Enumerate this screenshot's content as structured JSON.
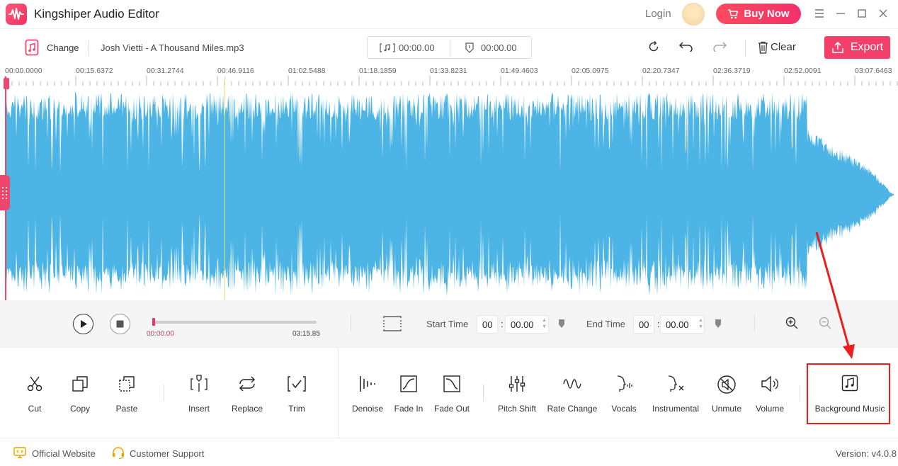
{
  "app": {
    "title": "Kingshiper Audio Editor"
  },
  "header": {
    "login_label": "Login",
    "buy_label": "Buy Now"
  },
  "toolbar": {
    "change_label": "Change",
    "filename": "Josh Vietti - A Thousand Miles.mp3",
    "time_start": "00:00.00",
    "time_end": "00:00.00",
    "clear_label": "Clear",
    "export_label": "Export"
  },
  "ruler": {
    "ticks": [
      "00:00.0000",
      "00:15.6372",
      "00:31.2744",
      "00:46.9116",
      "01:02.5488",
      "01:18.1859",
      "01:33.8231",
      "01:49.4603",
      "02:05.0975",
      "02:20.7347",
      "02:36.3719",
      "02:52.0091",
      "03:07.6463"
    ]
  },
  "playback": {
    "current_time": "00:00.00",
    "total_time": "03:15.85",
    "start_time_label": "Start Time",
    "end_time_label": "End Time",
    "start_min": "00",
    "start_sec": "00.00",
    "end_min": "00",
    "end_sec": "00.00"
  },
  "effects": {
    "cut": "Cut",
    "copy": "Copy",
    "paste": "Paste",
    "insert": "Insert",
    "replace": "Replace",
    "trim": "Trim",
    "denoise": "Denoise",
    "fade_in": "Fade In",
    "fade_out": "Fade Out",
    "pitch_shift": "Pitch Shift",
    "rate_change": "Rate Change",
    "vocals": "Vocals",
    "instrumental": "Instrumental",
    "unmute": "Unmute",
    "volume": "Volume",
    "background_music": "Background Music"
  },
  "footer": {
    "website": "Official Website",
    "support": "Customer Support",
    "version": "Version: v4.0.8"
  },
  "colors": {
    "accent": "#f43f6a",
    "waveform": "#4db5e5",
    "highlight": "#ee1c1c"
  }
}
